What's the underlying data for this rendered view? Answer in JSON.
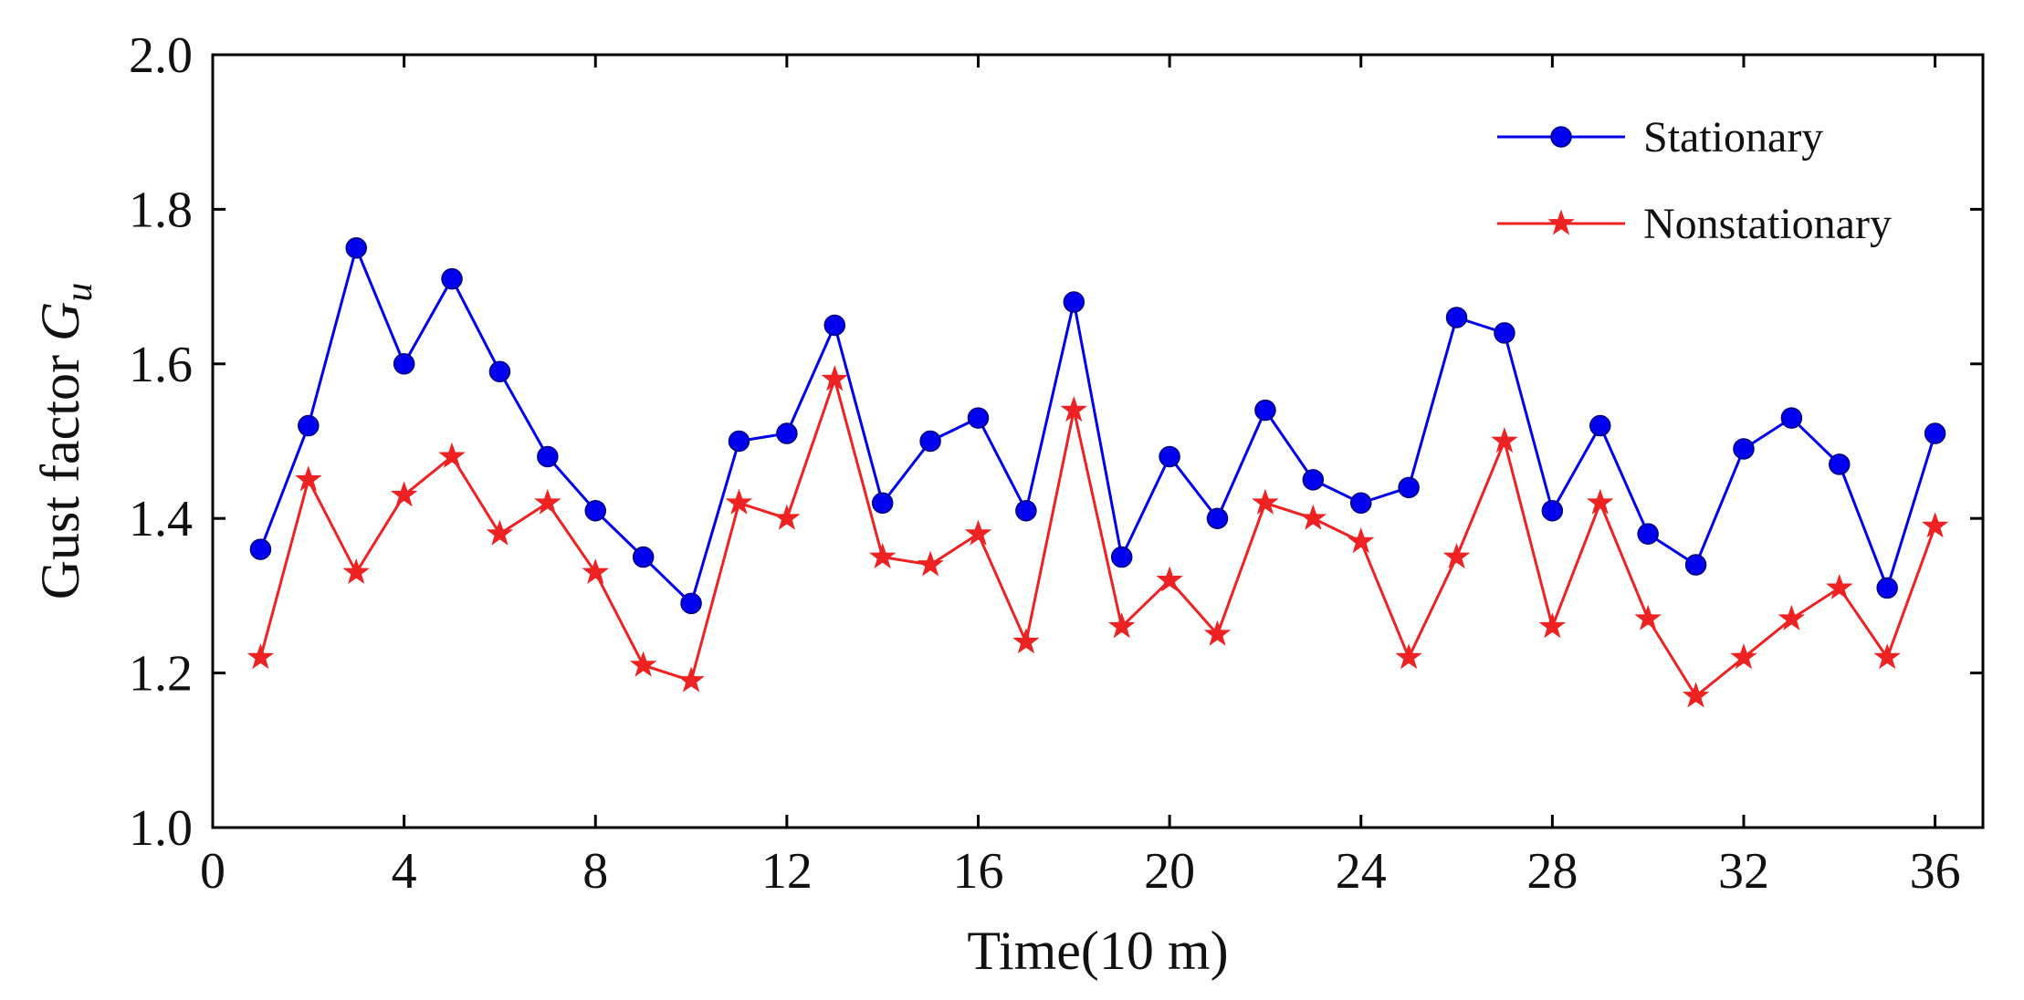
{
  "chart_data": {
    "type": "line",
    "xlabel": "Time(10 m)",
    "ylabel": "Gust factor ",
    "ylabel_symbol": "G",
    "ylabel_subscript": "u",
    "xlim": [
      0,
      37
    ],
    "ylim": [
      1.0,
      2.0
    ],
    "xticks": [
      0,
      4,
      8,
      12,
      16,
      20,
      24,
      28,
      32,
      36
    ],
    "yticks": [
      1.0,
      1.2,
      1.4,
      1.6,
      1.8,
      2.0
    ],
    "xtick_labels": [
      "0",
      "4",
      "8",
      "12",
      "16",
      "20",
      "24",
      "28",
      "32",
      "36"
    ],
    "ytick_labels": [
      "1.0",
      "1.2",
      "1.4",
      "1.6",
      "1.8",
      "2.0"
    ],
    "grid": false,
    "legend_position": "top-right",
    "x": [
      1,
      2,
      3,
      4,
      5,
      6,
      7,
      8,
      9,
      10,
      11,
      12,
      13,
      14,
      15,
      16,
      17,
      18,
      19,
      20,
      21,
      22,
      23,
      24,
      25,
      26,
      27,
      28,
      29,
      30,
      31,
      32,
      33,
      34,
      35,
      36
    ],
    "series": [
      {
        "name": "Stationary",
        "color": "#0000ee",
        "marker": "circle",
        "values": [
          1.36,
          1.52,
          1.75,
          1.6,
          1.71,
          1.59,
          1.48,
          1.41,
          1.35,
          1.29,
          1.5,
          1.51,
          1.65,
          1.42,
          1.5,
          1.53,
          1.41,
          1.68,
          1.35,
          1.48,
          1.4,
          1.54,
          1.45,
          1.42,
          1.44,
          1.66,
          1.64,
          1.41,
          1.52,
          1.38,
          1.34,
          1.49,
          1.53,
          1.47,
          1.31,
          1.51
        ]
      },
      {
        "name": "Nonstationary",
        "color": "#ee2222",
        "marker": "star",
        "values": [
          1.22,
          1.45,
          1.33,
          1.43,
          1.48,
          1.38,
          1.42,
          1.33,
          1.21,
          1.19,
          1.42,
          1.4,
          1.58,
          1.35,
          1.34,
          1.38,
          1.24,
          1.54,
          1.26,
          1.32,
          1.25,
          1.42,
          1.4,
          1.37,
          1.22,
          1.35,
          1.5,
          1.26,
          1.42,
          1.27,
          1.17,
          1.22,
          1.27,
          1.31,
          1.22,
          1.39
        ]
      }
    ]
  }
}
